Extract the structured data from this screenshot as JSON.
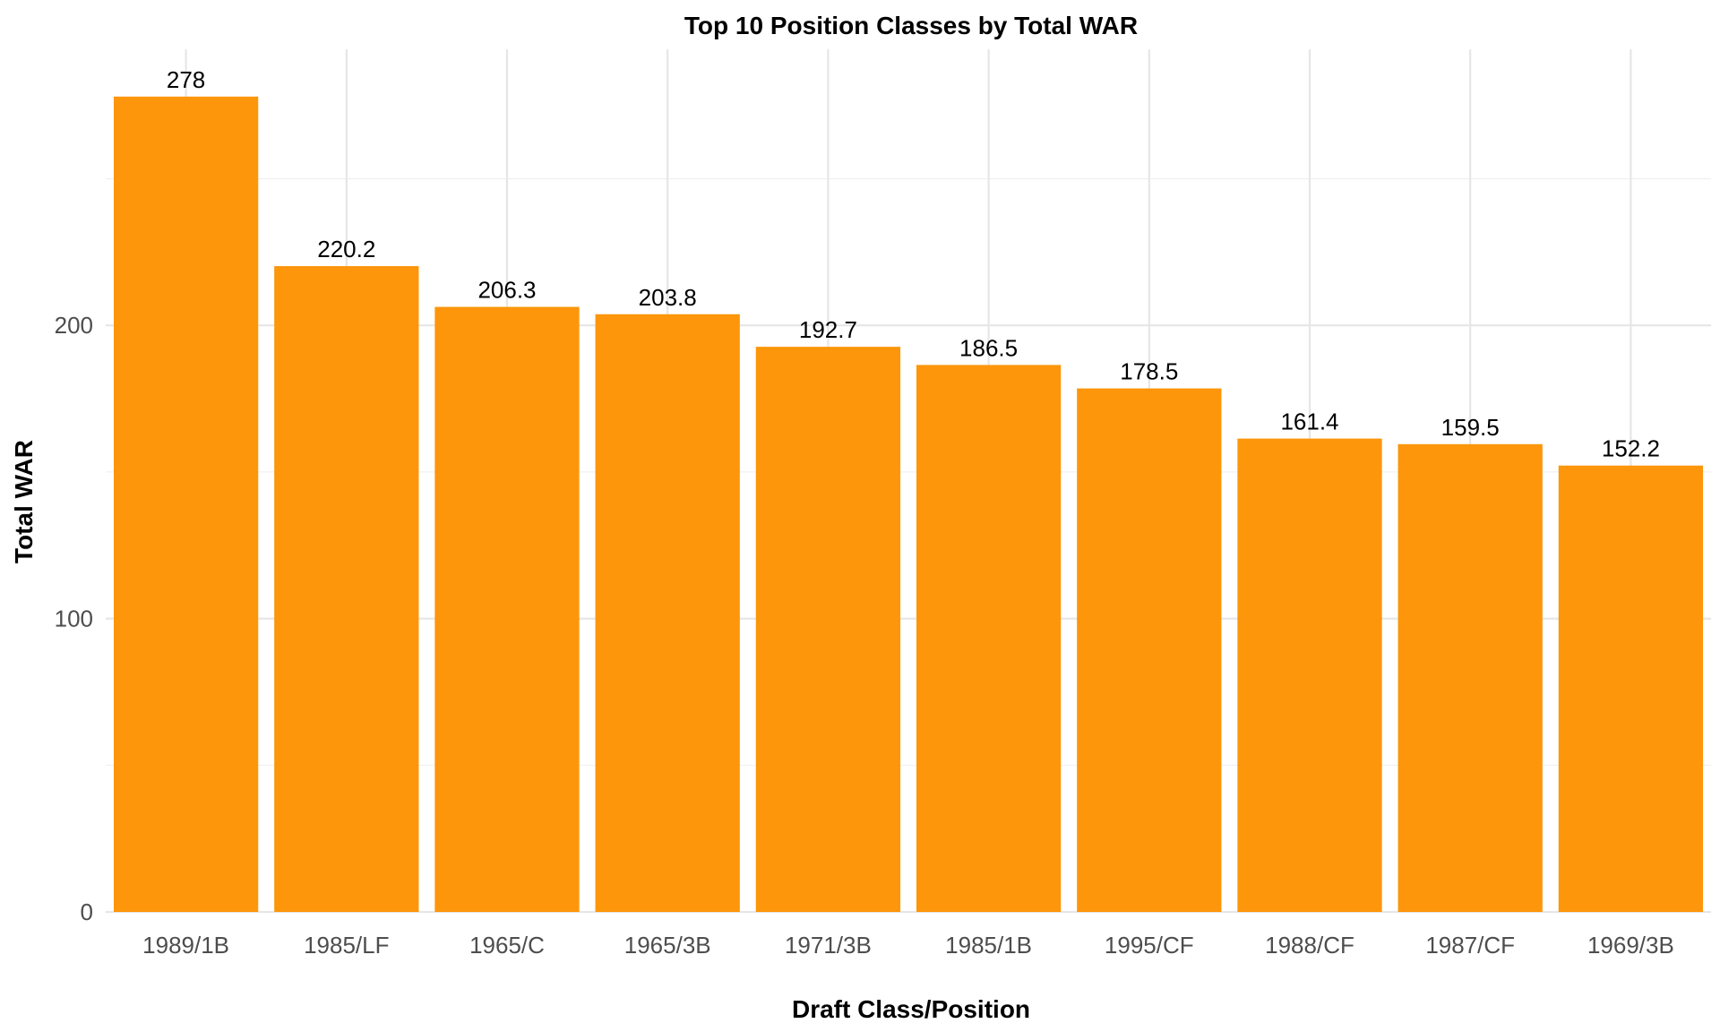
{
  "chart_data": {
    "type": "bar",
    "title": "Top 10 Position Classes by Total WAR",
    "xlabel": "Draft Class/Position",
    "ylabel": "Total WAR",
    "categories": [
      "1989/1B",
      "1985/LF",
      "1965/C",
      "1965/3B",
      "1971/3B",
      "1985/1B",
      "1995/CF",
      "1988/CF",
      "1987/CF",
      "1969/3B"
    ],
    "values": [
      278,
      220.2,
      206.3,
      203.8,
      192.7,
      186.5,
      178.5,
      161.4,
      159.5,
      152.2
    ],
    "value_labels": [
      "278",
      "220.2",
      "206.3",
      "203.8",
      "192.7",
      "186.5",
      "178.5",
      "161.4",
      "159.5",
      "152.2"
    ],
    "ylim": [
      0,
      300
    ],
    "yticks": [
      0,
      100,
      200
    ],
    "ytick_labels": [
      "0",
      "100",
      "200"
    ],
    "grid": true,
    "legend": "none",
    "bar_color": "#FD960B"
  }
}
